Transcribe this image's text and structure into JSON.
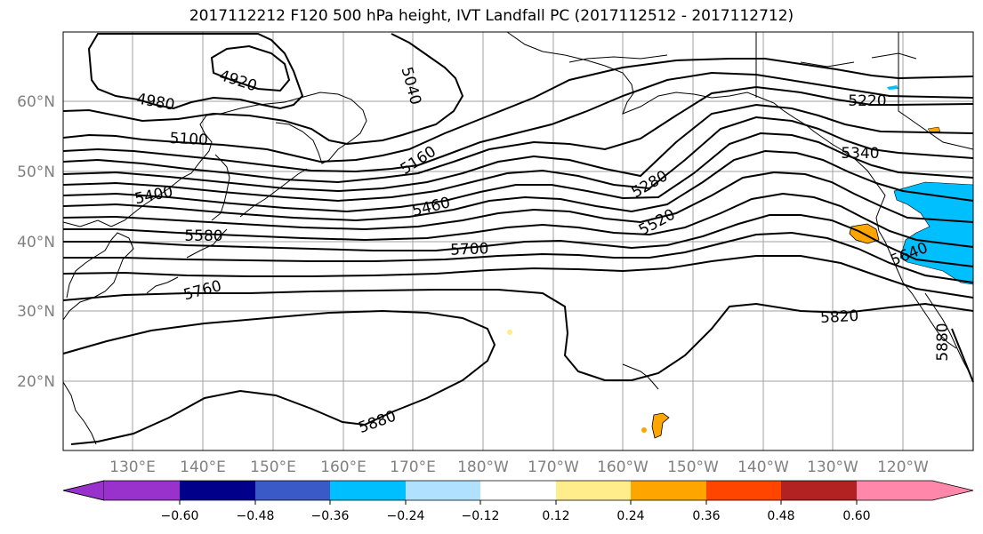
{
  "title": "2017112212 F120 500 hPa height, IVT Landfall PC (2017112512 - 2017112712)",
  "lat_labels": [
    "60°N",
    "50°N",
    "40°N",
    "30°N",
    "20°N"
  ],
  "lon_labels": [
    "130°E",
    "140°E",
    "150°E",
    "160°E",
    "170°E",
    "180°W",
    "170°W",
    "160°W",
    "150°W",
    "140°W",
    "130°W",
    "120°W"
  ],
  "contour_labels": [
    "4920",
    "4980",
    "5040",
    "5100",
    "5160",
    "5220",
    "5280",
    "5340",
    "5400",
    "5460",
    "5520",
    "5580",
    "5640",
    "5700",
    "5760",
    "5820",
    "5880",
    "5880"
  ],
  "colorbar": {
    "tick_labels": [
      "−0.60",
      "−0.48",
      "−0.36",
      "−0.24",
      "−0.12",
      "0.12",
      "0.24",
      "0.36",
      "0.48",
      "0.60"
    ],
    "colors": [
      "#9932CC",
      "#00008B",
      "#3A5BC7",
      "#00BFFF",
      "#B0E2FF",
      "#FFFFFF",
      "#FFEC8B",
      "#FFA500",
      "#FF4500",
      "#B22222",
      "#FF88AA"
    ]
  }
}
